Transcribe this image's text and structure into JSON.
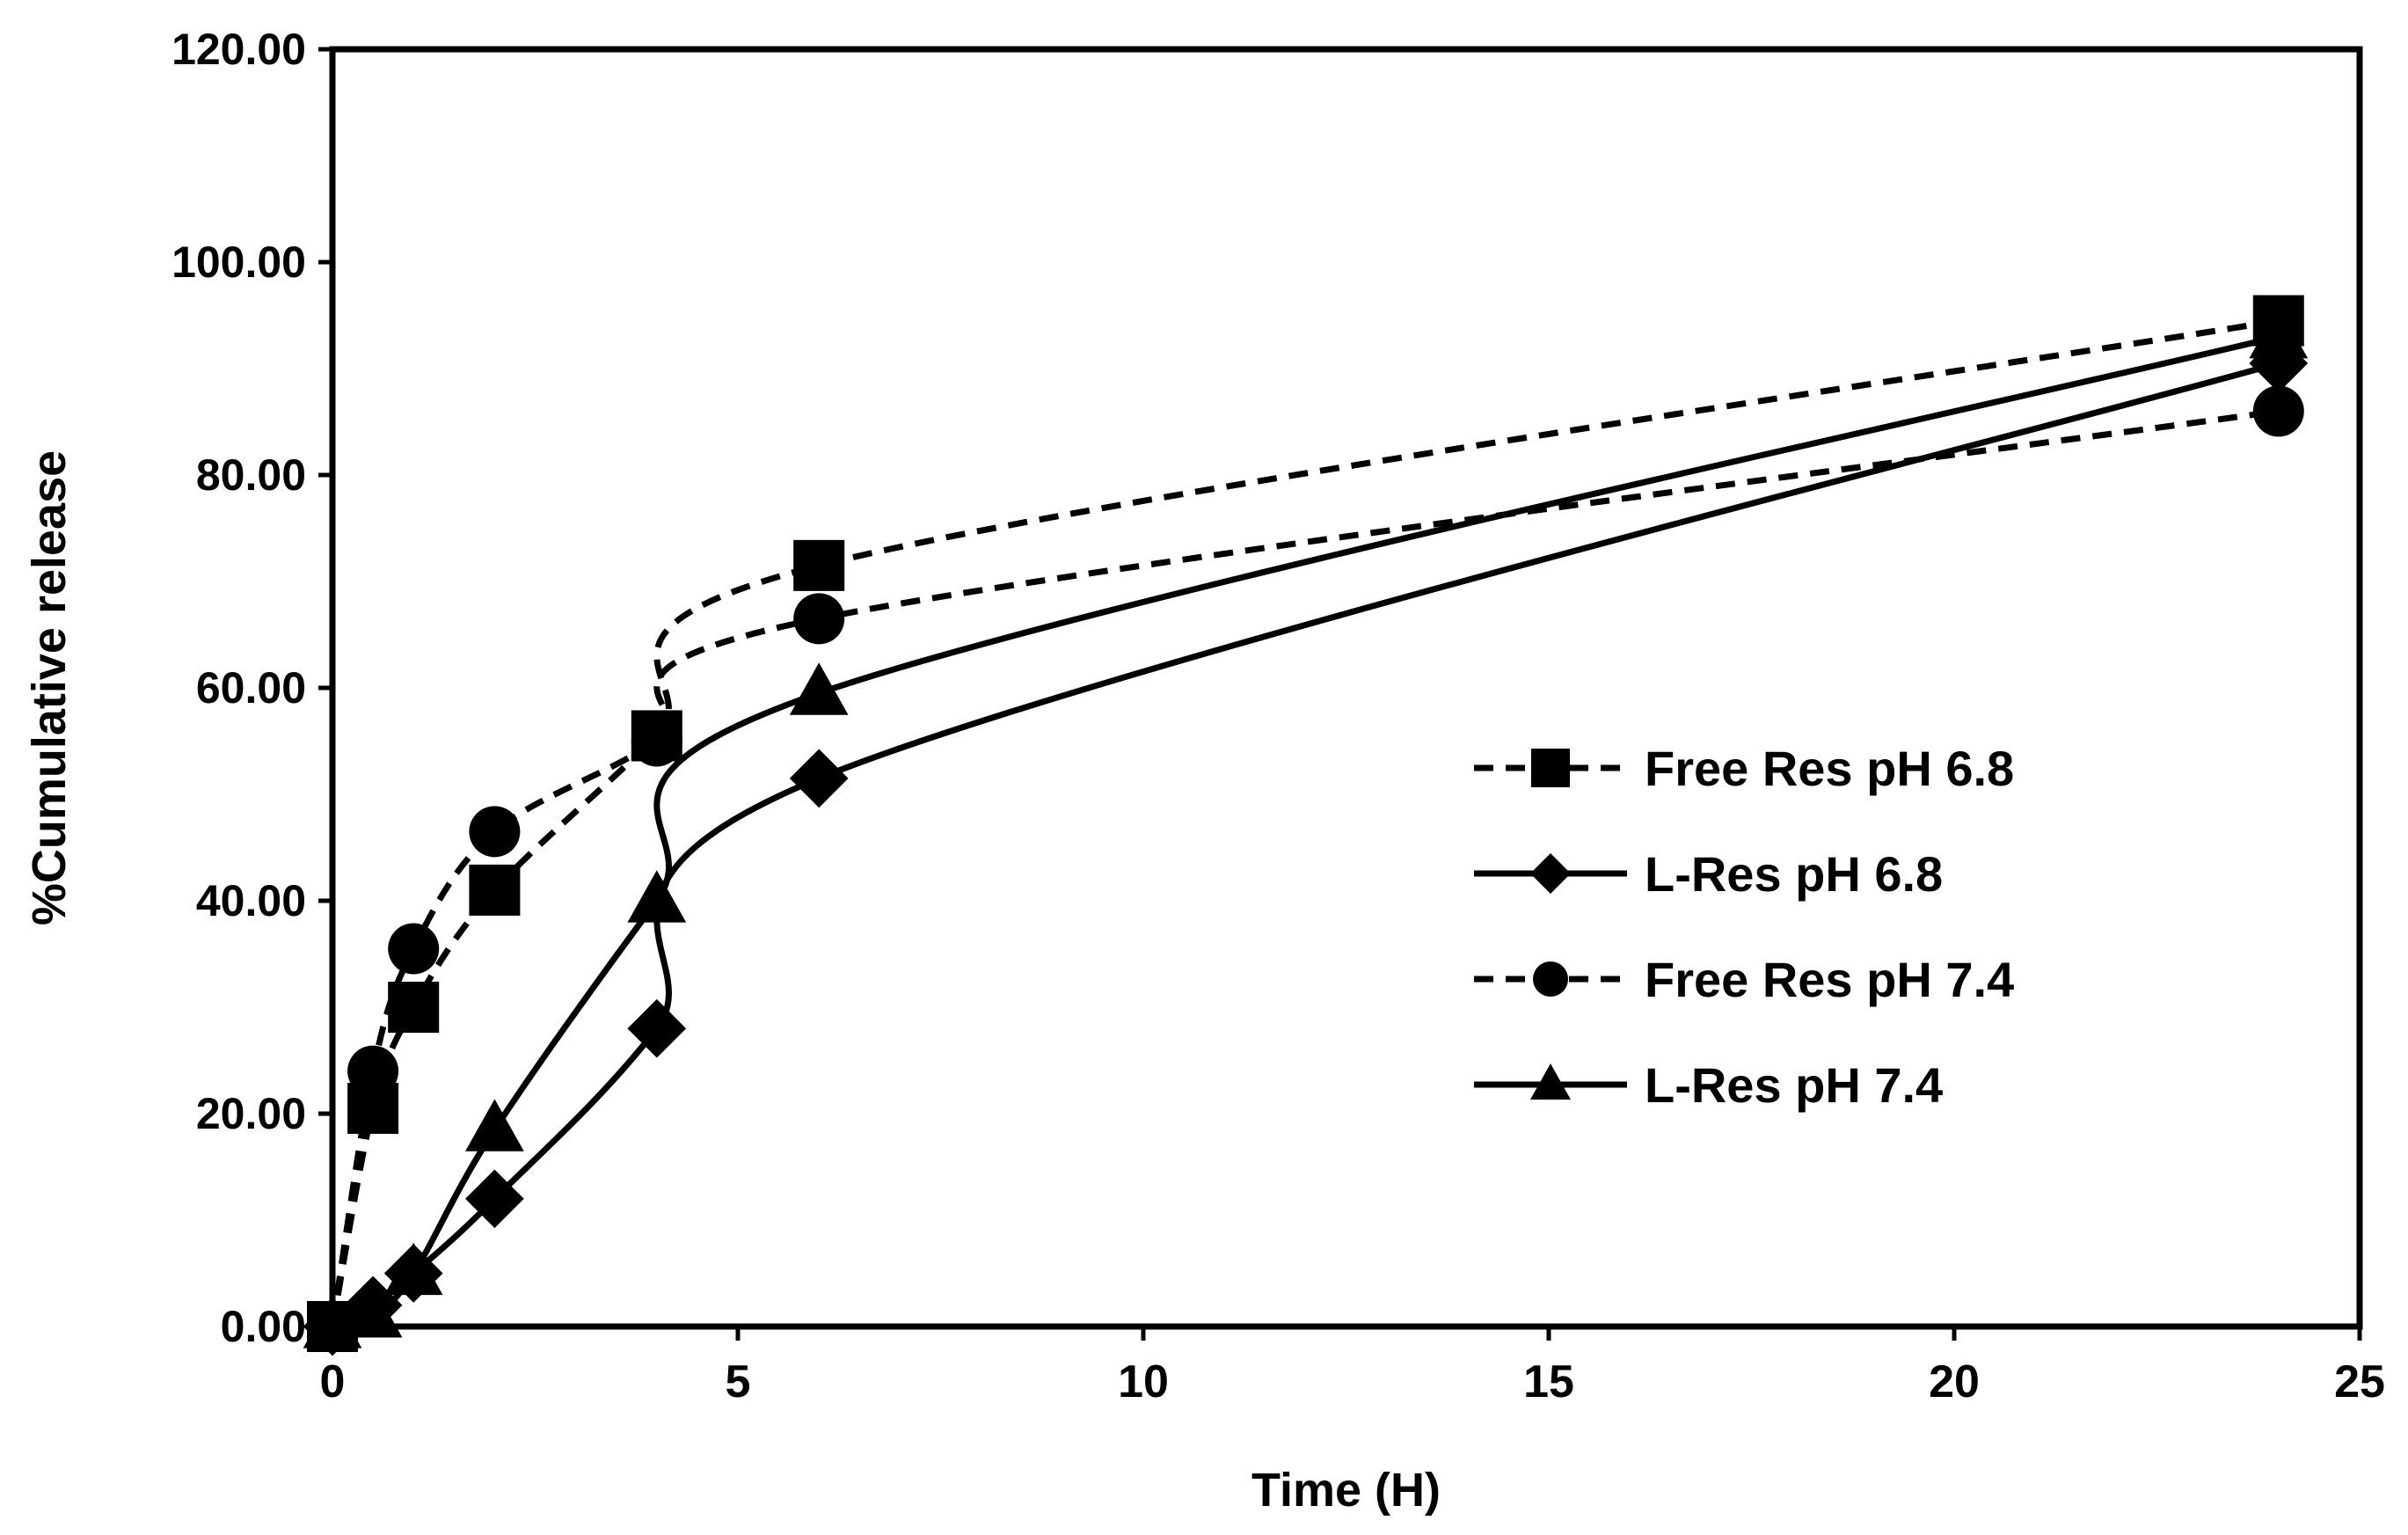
{
  "chart_data": {
    "type": "line",
    "title": "",
    "xlabel": "Time (H)",
    "ylabel": "%Cumulative release",
    "xlim": [
      0,
      25
    ],
    "ylim": [
      0,
      120
    ],
    "x_ticks": [
      0,
      5,
      10,
      15,
      20,
      25
    ],
    "x_tick_labels": [
      "0",
      "5",
      "10",
      "15",
      "20",
      "25"
    ],
    "y_ticks": [
      0,
      20,
      40,
      60,
      80,
      100,
      120
    ],
    "y_tick_labels": [
      "0.00",
      "20.00",
      "40.00",
      "60.00",
      "80.00",
      "100.00",
      "120.00"
    ],
    "grid": false,
    "legend_position": "center-right",
    "x": [
      0,
      0.5,
      1,
      2,
      4,
      6,
      24
    ],
    "series": [
      {
        "name": "Free Res pH 6.8",
        "marker": "square",
        "line": "dashed",
        "values": [
          0,
          20.5,
          30,
          41,
          55.5,
          71.5,
          94.5
        ]
      },
      {
        "name": "L-Res pH 6.8",
        "marker": "diamond",
        "line": "solid",
        "values": [
          0,
          2,
          5,
          12,
          28,
          51.5,
          90.5
        ]
      },
      {
        "name": "Free Res pH 7.4",
        "marker": "circle",
        "line": "dashed",
        "values": [
          0,
          24,
          35.5,
          46.5,
          55,
          66.5,
          86
        ]
      },
      {
        "name": "L-Res pH 7.4",
        "marker": "triangle",
        "line": "solid",
        "values": [
          0,
          1,
          5,
          18.5,
          40,
          59.5,
          93
        ]
      }
    ],
    "colors": {
      "line": "#000000",
      "marker": "#000000",
      "background": "#ffffff"
    }
  }
}
